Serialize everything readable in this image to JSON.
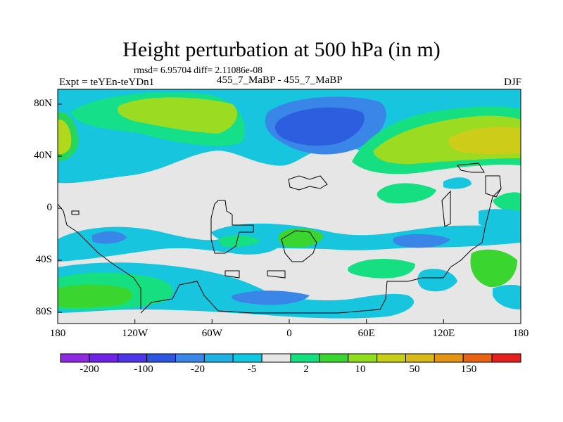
{
  "title": "Height perturbation at 500 hPa (in m)",
  "stats": "rmsd= 6.95704 diff= 2.11086e-08",
  "experiment": "Expt = teYEn-teYDn1",
  "runs": "455_7_MaBP - 455_7_MaBP",
  "season": "DJF",
  "map": {
    "lon_ticks": [
      "180",
      "120W",
      "60W",
      "0",
      "60E",
      "120E",
      "180"
    ],
    "lat_ticks": [
      "80N",
      "40N",
      "0",
      "40S",
      "80S"
    ],
    "background": "#e6e6e6",
    "coastline_color": "#000000"
  },
  "colorbar": {
    "labels": [
      "-200",
      "-100",
      "-20",
      "-5",
      "2",
      "10",
      "50",
      "150"
    ],
    "colors": [
      "#8e2be0",
      "#7022e6",
      "#4d35e8",
      "#2d55e0",
      "#3a86e8",
      "#21b0e3",
      "#12c8e0",
      "#e6e6e6",
      "#16df82",
      "#3bd52f",
      "#90dc1f",
      "#c6cf18",
      "#d9b91a",
      "#e39416",
      "#e86314",
      "#e6201e"
    ]
  }
}
